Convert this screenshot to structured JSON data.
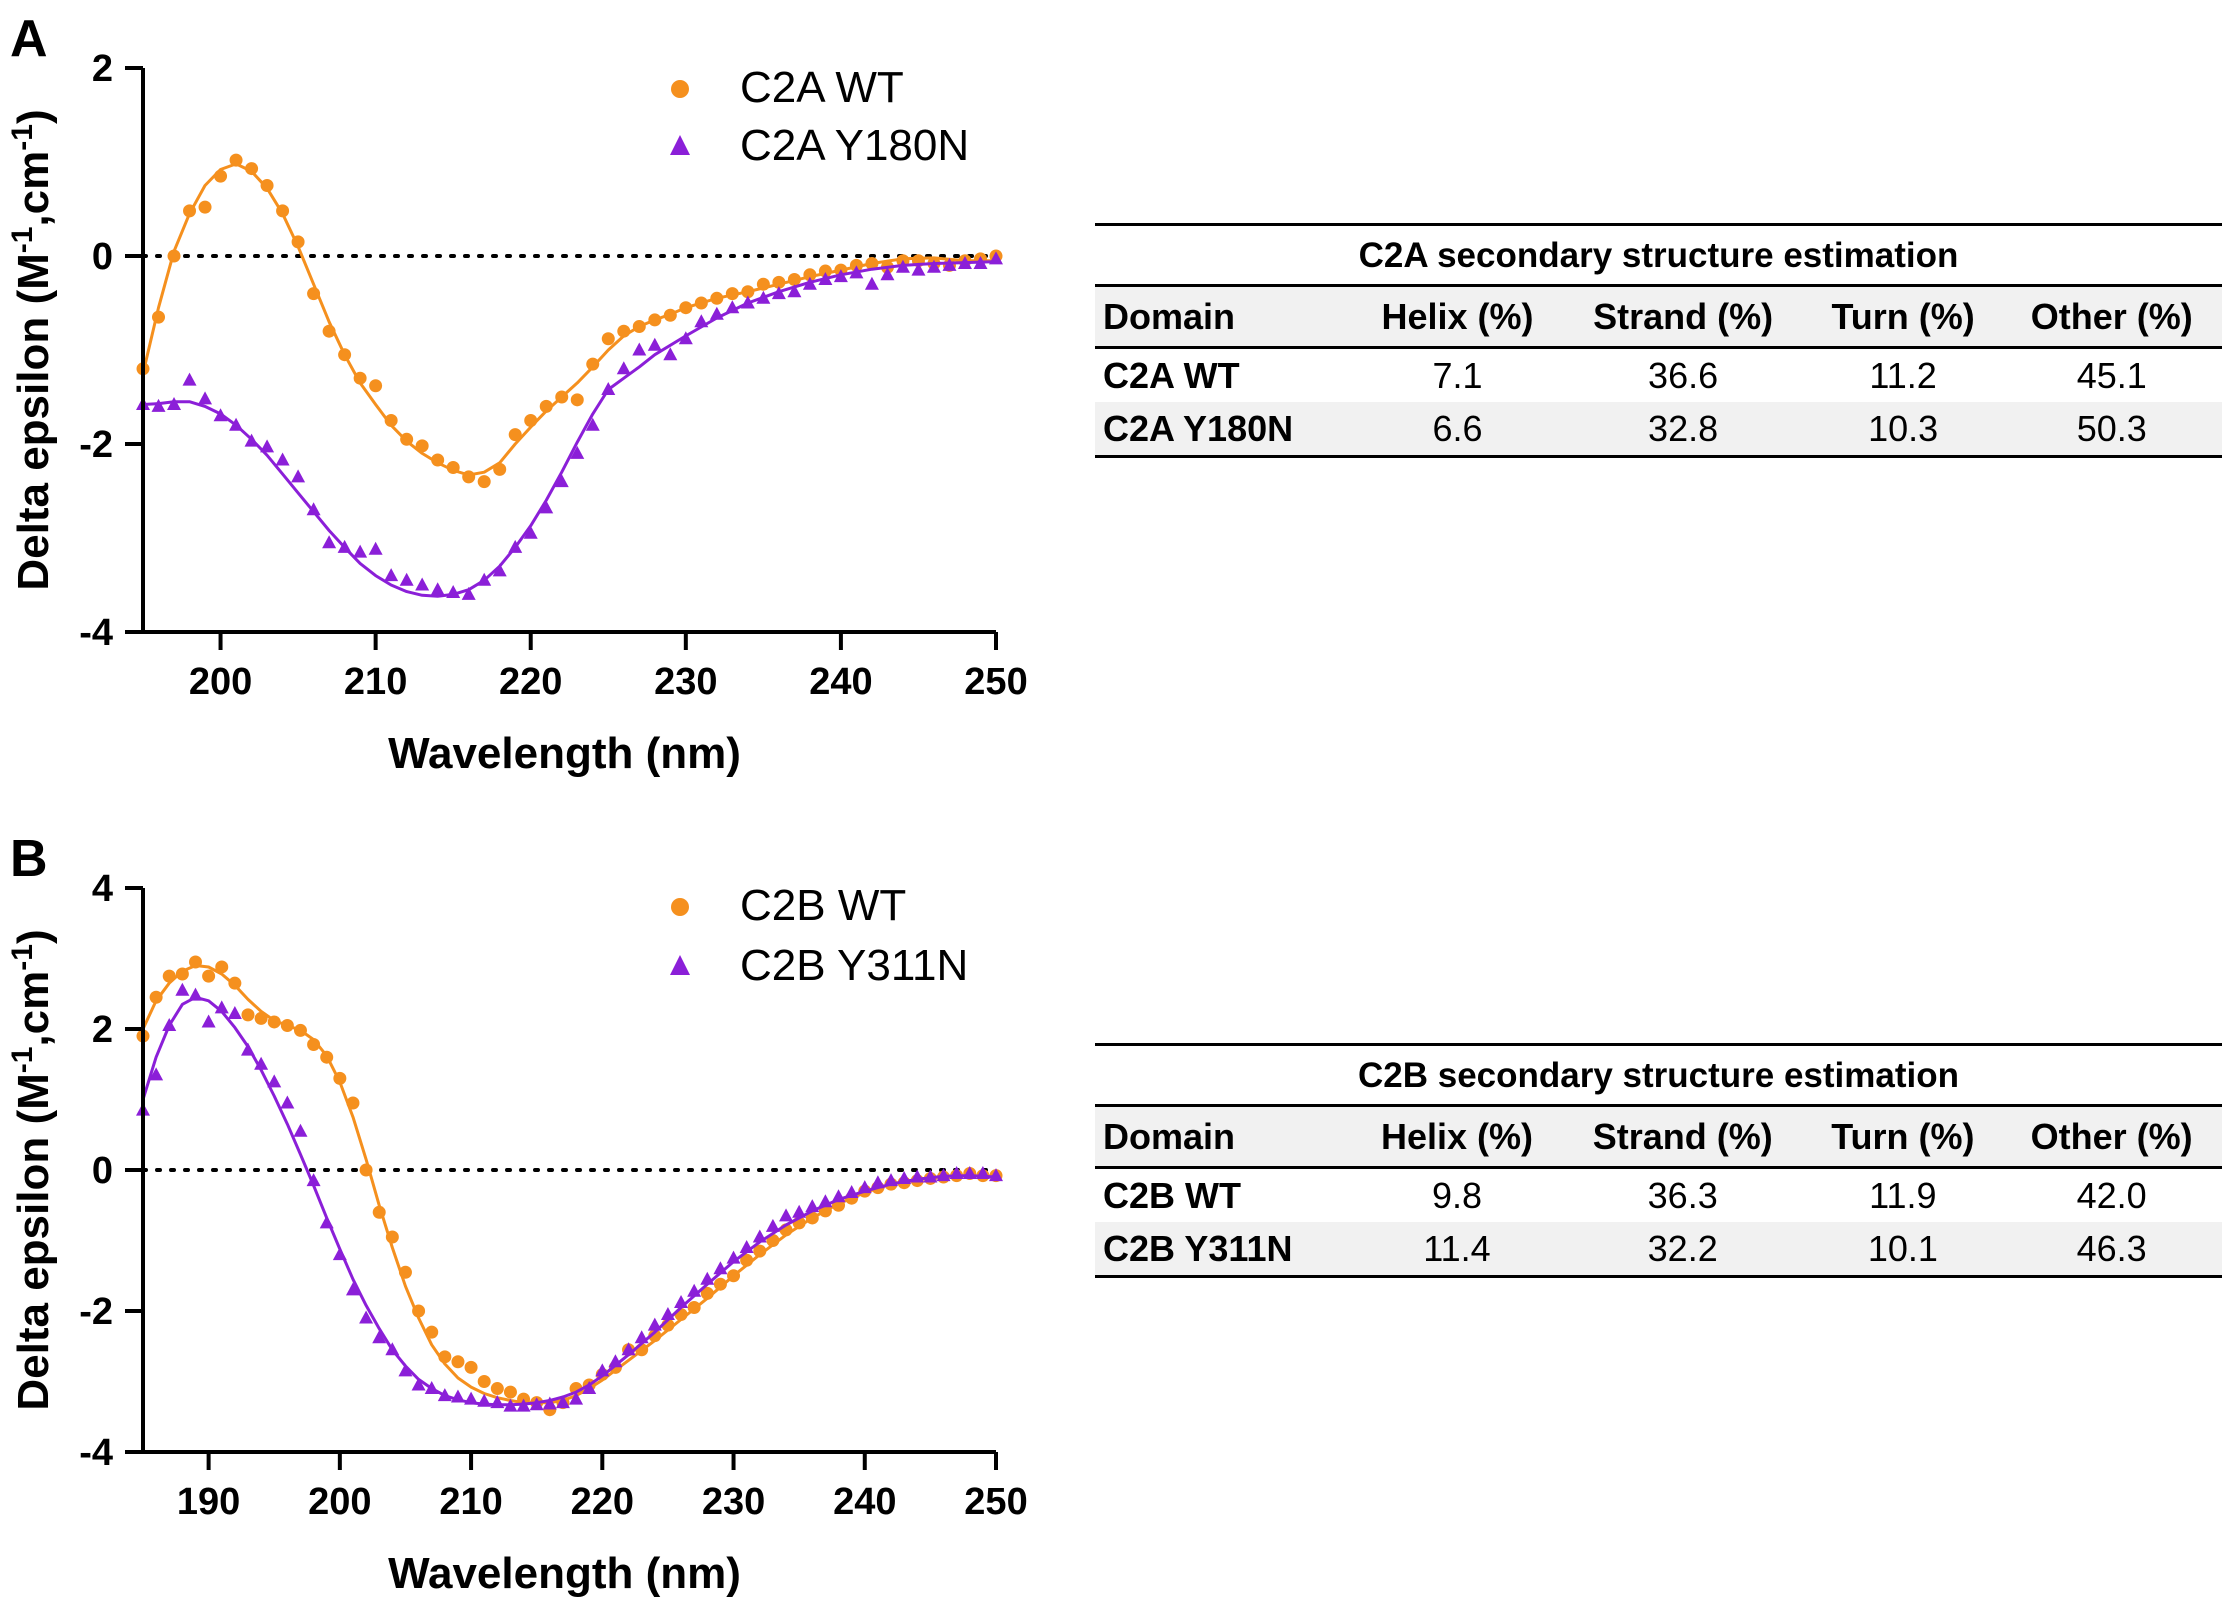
{
  "chart_data": [
    {
      "type": "scatter",
      "panel_label": "A",
      "xlabel": "Wavelength (nm)",
      "ylabel": "Delta epsilon (M",
      "ylabel_sup1": "-1",
      "ylabel_mid": ",cm",
      "ylabel_sup2": "-1",
      "ylabel_end": ")",
      "xlim": [
        195,
        250
      ],
      "ylim": [
        -4,
        2
      ],
      "xticks": [
        200,
        210,
        220,
        230,
        240,
        250
      ],
      "yticks": [
        2,
        0,
        -2,
        -4
      ],
      "xtick_labels": [
        "200",
        "210",
        "220",
        "230",
        "240",
        "250"
      ],
      "ytick_labels": [
        "2",
        "0",
        "-2",
        "-4"
      ],
      "zero_line": "dotted",
      "legend_position": "top-right",
      "series": [
        {
          "name": "C2A WT",
          "marker": "circle",
          "color": "#F5901E",
          "x": [
            195,
            196,
            197,
            198,
            199,
            200,
            201,
            202,
            203,
            204,
            205,
            206,
            207,
            208,
            209,
            210,
            211,
            212,
            213,
            214,
            215,
            216,
            217,
            218,
            219,
            220,
            221,
            222,
            223,
            224,
            225,
            226,
            227,
            228,
            229,
            230,
            231,
            232,
            233,
            234,
            235,
            236,
            237,
            238,
            239,
            240,
            241,
            242,
            243,
            244,
            245,
            246,
            247,
            248,
            249,
            250
          ],
          "y": [
            -1.2,
            -0.65,
            0.0,
            0.48,
            0.52,
            0.85,
            1.02,
            0.93,
            0.75,
            0.48,
            0.15,
            -0.4,
            -0.8,
            -1.05,
            -1.3,
            -1.38,
            -1.75,
            -1.95,
            -2.02,
            -2.17,
            -2.25,
            -2.35,
            -2.4,
            -2.27,
            -1.9,
            -1.75,
            -1.6,
            -1.5,
            -1.53,
            -1.15,
            -0.88,
            -0.8,
            -0.75,
            -0.68,
            -0.63,
            -0.55,
            -0.5,
            -0.45,
            -0.4,
            -0.38,
            -0.3,
            -0.28,
            -0.25,
            -0.2,
            -0.16,
            -0.15,
            -0.1,
            -0.08,
            -0.12,
            -0.05,
            -0.05,
            -0.08,
            -0.1,
            -0.05,
            -0.03,
            0.0
          ],
          "fit_x": [
            195,
            196,
            197,
            198,
            199,
            200,
            201,
            202,
            203,
            204,
            205,
            206,
            207,
            208,
            209,
            210,
            211,
            212,
            213,
            214,
            215,
            216,
            217,
            218,
            219,
            220,
            221,
            222,
            223,
            224,
            225,
            226,
            227,
            228,
            229,
            230,
            232,
            234,
            236,
            238,
            240,
            242,
            244,
            246,
            248,
            250
          ],
          "fit_y": [
            -1.25,
            -0.55,
            0.05,
            0.45,
            0.75,
            0.92,
            0.98,
            0.9,
            0.72,
            0.45,
            0.1,
            -0.3,
            -0.7,
            -1.05,
            -1.35,
            -1.58,
            -1.8,
            -1.97,
            -2.1,
            -2.2,
            -2.28,
            -2.33,
            -2.3,
            -2.2,
            -2.0,
            -1.82,
            -1.65,
            -1.5,
            -1.35,
            -1.18,
            -1.0,
            -0.85,
            -0.75,
            -0.68,
            -0.62,
            -0.55,
            -0.45,
            -0.38,
            -0.3,
            -0.22,
            -0.15,
            -0.08,
            -0.03,
            -0.02,
            -0.05,
            -0.05
          ]
        },
        {
          "name": "C2A Y180N",
          "marker": "triangle",
          "color": "#8B1FD8",
          "x": [
            195,
            196,
            197,
            198,
            199,
            200,
            201,
            202,
            203,
            204,
            205,
            206,
            207,
            208,
            209,
            210,
            211,
            212,
            213,
            214,
            215,
            216,
            217,
            218,
            219,
            220,
            221,
            222,
            223,
            224,
            225,
            226,
            227,
            228,
            229,
            230,
            231,
            232,
            233,
            234,
            235,
            236,
            237,
            238,
            239,
            240,
            241,
            242,
            243,
            244,
            245,
            246,
            247,
            248,
            249,
            250
          ],
          "y": [
            -1.58,
            -1.6,
            -1.58,
            -1.32,
            -1.52,
            -1.7,
            -1.8,
            -1.97,
            -2.03,
            -2.17,
            -2.35,
            -2.7,
            -3.05,
            -3.1,
            -3.15,
            -3.12,
            -3.4,
            -3.45,
            -3.5,
            -3.55,
            -3.58,
            -3.6,
            -3.45,
            -3.35,
            -3.1,
            -2.95,
            -2.68,
            -2.4,
            -2.1,
            -1.8,
            -1.42,
            -1.2,
            -1.0,
            -0.95,
            -1.05,
            -0.88,
            -0.7,
            -0.62,
            -0.55,
            -0.5,
            -0.45,
            -0.4,
            -0.38,
            -0.3,
            -0.25,
            -0.22,
            -0.18,
            -0.3,
            -0.2,
            -0.12,
            -0.15,
            -0.12,
            -0.1,
            -0.08,
            -0.08,
            -0.03
          ],
          "fit_x": [
            195,
            196,
            197,
            198,
            199,
            200,
            201,
            202,
            203,
            204,
            205,
            206,
            207,
            208,
            209,
            210,
            211,
            212,
            213,
            214,
            215,
            216,
            217,
            218,
            219,
            220,
            221,
            222,
            223,
            224,
            225,
            226,
            227,
            228,
            230,
            232,
            234,
            236,
            238,
            240,
            242,
            244,
            246,
            248,
            250
          ],
          "fit_y": [
            -1.58,
            -1.57,
            -1.55,
            -1.55,
            -1.6,
            -1.68,
            -1.8,
            -1.95,
            -2.12,
            -2.32,
            -2.52,
            -2.72,
            -2.92,
            -3.1,
            -3.27,
            -3.4,
            -3.5,
            -3.57,
            -3.61,
            -3.62,
            -3.6,
            -3.55,
            -3.45,
            -3.3,
            -3.1,
            -2.87,
            -2.6,
            -2.3,
            -1.98,
            -1.68,
            -1.42,
            -1.3,
            -1.18,
            -1.05,
            -0.85,
            -0.66,
            -0.5,
            -0.38,
            -0.28,
            -0.2,
            -0.14,
            -0.1,
            -0.08,
            -0.07,
            -0.06
          ]
        }
      ]
    },
    {
      "type": "scatter",
      "panel_label": "B",
      "xlabel": "Wavelength (nm)",
      "ylabel": "Delta epsilon (M",
      "ylabel_sup1": "-1",
      "ylabel_mid": ",cm",
      "ylabel_sup2": "-1",
      "ylabel_end": ")",
      "xlim": [
        185,
        250
      ],
      "ylim": [
        -4,
        4
      ],
      "xticks": [
        190,
        200,
        210,
        220,
        230,
        240,
        250
      ],
      "yticks": [
        4,
        2,
        0,
        -2,
        -4
      ],
      "xtick_labels": [
        "190",
        "200",
        "210",
        "220",
        "230",
        "240",
        "250"
      ],
      "ytick_labels": [
        "4",
        "2",
        "0",
        "-2",
        "-4"
      ],
      "zero_line": "dotted",
      "legend_position": "top-right",
      "series": [
        {
          "name": "C2B WT",
          "marker": "circle",
          "color": "#F5901E",
          "x": [
            185,
            186,
            187,
            188,
            189,
            190,
            191,
            192,
            193,
            194,
            195,
            196,
            197,
            198,
            199,
            200,
            201,
            202,
            203,
            204,
            205,
            206,
            207,
            208,
            209,
            210,
            211,
            212,
            213,
            214,
            215,
            216,
            217,
            218,
            219,
            220,
            221,
            222,
            223,
            224,
            225,
            226,
            227,
            228,
            229,
            230,
            231,
            232,
            233,
            234,
            235,
            236,
            237,
            238,
            239,
            240,
            241,
            242,
            243,
            244,
            245,
            246,
            247,
            248,
            249,
            250
          ],
          "y": [
            1.9,
            2.45,
            2.75,
            2.78,
            2.95,
            2.75,
            2.88,
            2.65,
            2.2,
            2.15,
            2.1,
            2.05,
            1.98,
            1.78,
            1.6,
            1.3,
            0.95,
            0.0,
            -0.6,
            -0.95,
            -1.45,
            -2.0,
            -2.3,
            -2.65,
            -2.72,
            -2.8,
            -3.0,
            -3.1,
            -3.15,
            -3.25,
            -3.3,
            -3.4,
            -3.3,
            -3.1,
            -3.05,
            -2.9,
            -2.8,
            -2.55,
            -2.55,
            -2.35,
            -2.2,
            -2.05,
            -1.95,
            -1.75,
            -1.62,
            -1.5,
            -1.28,
            -1.15,
            -1.0,
            -0.85,
            -0.75,
            -0.68,
            -0.58,
            -0.5,
            -0.4,
            -0.3,
            -0.25,
            -0.2,
            -0.18,
            -0.15,
            -0.12,
            -0.1,
            -0.08,
            -0.05,
            -0.08,
            -0.08
          ],
          "fit_x": [
            185,
            186,
            187,
            188,
            189,
            190,
            191,
            192,
            193,
            194,
            195,
            196,
            197,
            198,
            199,
            200,
            201,
            202,
            203,
            204,
            205,
            206,
            207,
            208,
            209,
            210,
            211,
            212,
            213,
            214,
            215,
            216,
            217,
            218,
            219,
            220,
            222,
            224,
            226,
            228,
            230,
            232,
            234,
            236,
            238,
            240,
            242,
            244,
            246,
            248,
            250
          ],
          "fit_y": [
            2.0,
            2.4,
            2.65,
            2.82,
            2.9,
            2.88,
            2.78,
            2.62,
            2.42,
            2.25,
            2.12,
            2.05,
            1.98,
            1.85,
            1.62,
            1.25,
            0.75,
            0.15,
            -0.5,
            -1.1,
            -1.65,
            -2.1,
            -2.48,
            -2.75,
            -2.95,
            -3.08,
            -3.17,
            -3.23,
            -3.27,
            -3.3,
            -3.3,
            -3.3,
            -3.27,
            -3.2,
            -3.1,
            -2.98,
            -2.7,
            -2.42,
            -2.12,
            -1.82,
            -1.5,
            -1.2,
            -0.92,
            -0.68,
            -0.48,
            -0.32,
            -0.2,
            -0.13,
            -0.09,
            -0.08,
            -0.1
          ]
        },
        {
          "name": "C2B Y311N",
          "marker": "triangle",
          "color": "#8B1FD8",
          "x": [
            185,
            186,
            187,
            188,
            189,
            190,
            191,
            192,
            193,
            194,
            195,
            196,
            197,
            198,
            199,
            200,
            201,
            202,
            203,
            204,
            205,
            206,
            207,
            208,
            209,
            210,
            211,
            212,
            213,
            214,
            215,
            216,
            217,
            218,
            219,
            220,
            221,
            222,
            223,
            224,
            225,
            226,
            227,
            228,
            229,
            230,
            231,
            232,
            233,
            234,
            235,
            236,
            237,
            238,
            239,
            240,
            241,
            242,
            243,
            244,
            245,
            246,
            247,
            248,
            249,
            250
          ],
          "y": [
            0.85,
            1.35,
            2.05,
            2.55,
            2.48,
            2.1,
            2.3,
            2.22,
            1.7,
            1.5,
            1.25,
            0.95,
            0.55,
            -0.15,
            -0.75,
            -1.2,
            -1.7,
            -2.1,
            -2.38,
            -2.55,
            -2.85,
            -3.05,
            -3.1,
            -3.2,
            -3.22,
            -3.25,
            -3.28,
            -3.3,
            -3.35,
            -3.35,
            -3.33,
            -3.32,
            -3.3,
            -3.25,
            -3.1,
            -2.85,
            -2.72,
            -2.55,
            -2.38,
            -2.2,
            -2.05,
            -1.88,
            -1.72,
            -1.55,
            -1.4,
            -1.25,
            -1.1,
            -0.95,
            -0.8,
            -0.65,
            -0.6,
            -0.52,
            -0.45,
            -0.38,
            -0.32,
            -0.25,
            -0.18,
            -0.15,
            -0.12,
            -0.1,
            -0.1,
            -0.08,
            -0.05,
            -0.05,
            -0.05,
            -0.08
          ],
          "fit_x": [
            185,
            186,
            187,
            188,
            189,
            190,
            191,
            192,
            193,
            194,
            195,
            196,
            197,
            198,
            199,
            200,
            201,
            202,
            203,
            204,
            205,
            206,
            207,
            208,
            209,
            210,
            211,
            212,
            213,
            214,
            215,
            216,
            217,
            218,
            219,
            220,
            222,
            224,
            226,
            228,
            230,
            232,
            234,
            236,
            238,
            240,
            242,
            244,
            246,
            248,
            250
          ],
          "fit_y": [
            1.0,
            1.6,
            2.05,
            2.35,
            2.45,
            2.4,
            2.25,
            2.02,
            1.75,
            1.42,
            1.05,
            0.65,
            0.22,
            -0.22,
            -0.68,
            -1.12,
            -1.55,
            -1.92,
            -2.25,
            -2.55,
            -2.78,
            -2.97,
            -3.1,
            -3.2,
            -3.26,
            -3.3,
            -3.32,
            -3.33,
            -3.33,
            -3.32,
            -3.3,
            -3.27,
            -3.22,
            -3.15,
            -3.05,
            -2.92,
            -2.62,
            -2.3,
            -1.95,
            -1.62,
            -1.3,
            -1.02,
            -0.78,
            -0.58,
            -0.42,
            -0.3,
            -0.2,
            -0.13,
            -0.09,
            -0.08,
            -0.1
          ]
        }
      ]
    }
  ],
  "tables": [
    {
      "title": "C2A secondary structure estimation",
      "headers": [
        "Domain",
        "Helix (%)",
        "Strand (%)",
        "Turn (%)",
        "Other (%)"
      ],
      "rows": [
        [
          "C2A WT",
          "7.1",
          "36.6",
          "11.2",
          "45.1"
        ],
        [
          "C2A Y180N",
          "6.6",
          "32.8",
          "10.3",
          "50.3"
        ]
      ]
    },
    {
      "title": "C2B secondary structure estimation",
      "headers": [
        "Domain",
        "Helix (%)",
        "Strand (%)",
        "Turn (%)",
        "Other (%)"
      ],
      "rows": [
        [
          "C2B WT",
          "9.8",
          "36.3",
          "11.9",
          "42.0"
        ],
        [
          "C2B Y311N",
          "11.4",
          "32.2",
          "10.1",
          "46.3"
        ]
      ]
    }
  ]
}
